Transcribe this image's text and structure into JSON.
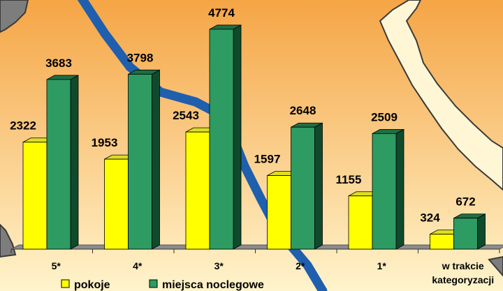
{
  "colors": {
    "bg_top": "#f5a545",
    "bg_bottom": "#fff4cc",
    "land_border": "#3a3a3a",
    "land_grey": "#7d7d7d",
    "river": "#1f5fae",
    "pokoje_front": "#ffff00",
    "pokoje_side": "#a8a800",
    "pokoje_top": "#dddd22",
    "miejsca_front": "#2e9b62",
    "miejsca_side": "#0f4a2c",
    "miejsca_top": "#1f6e45",
    "floor": "#8c8c8c"
  },
  "chart_data": {
    "type": "bar",
    "categories": [
      "5*",
      "4*",
      "3*",
      "2*",
      "1*",
      "w trakcie kategoryzacji"
    ],
    "category_lines": [
      [
        "5*"
      ],
      [
        "4*"
      ],
      [
        "3*"
      ],
      [
        "2*"
      ],
      [
        "1*"
      ],
      [
        "w trakcie",
        "kategoryzacji"
      ]
    ],
    "series": [
      {
        "name": "pokoje",
        "values": [
          2322,
          1953,
          2543,
          1597,
          1155,
          324
        ]
      },
      {
        "name": "miejsca noclegowe",
        "values": [
          3683,
          3798,
          4774,
          2648,
          2509,
          672
        ]
      }
    ],
    "ylim": [
      0,
      5000
    ],
    "legend": "bottom-left",
    "grid": false
  }
}
